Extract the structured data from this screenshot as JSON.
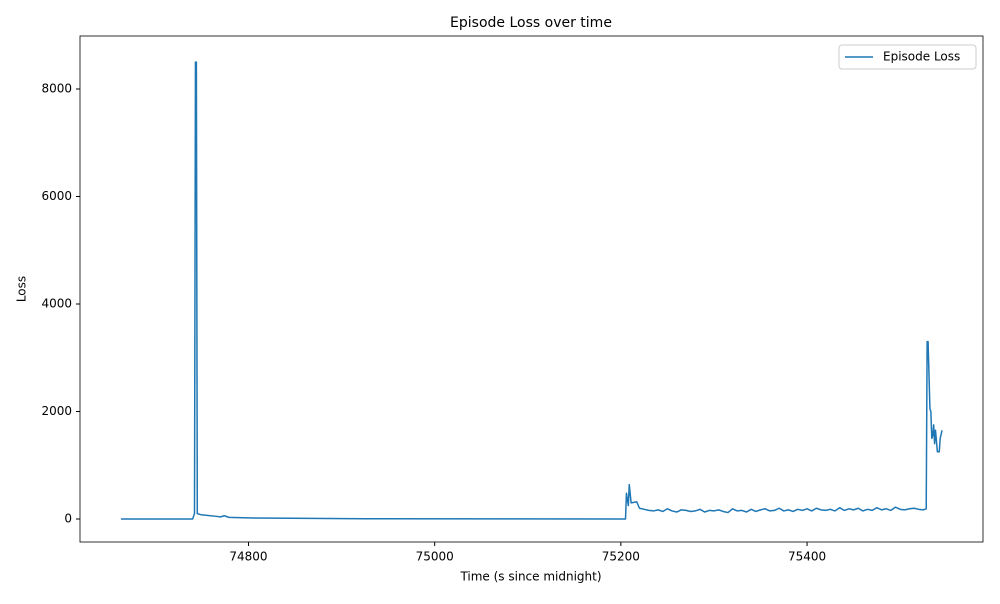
{
  "chart_data": {
    "type": "line",
    "title": "Episode Loss over time",
    "x_label": "Time (s since midnight)",
    "y_label": "Loss",
    "x": [
      74663,
      74740,
      74742,
      74743,
      74744,
      74745,
      74749,
      74765,
      74770,
      74774,
      74779,
      74800,
      74925,
      75205,
      75206,
      75208,
      75209,
      75211,
      75217,
      75220,
      75225,
      75230,
      75235,
      75240,
      75245,
      75250,
      75255,
      75260,
      75265,
      75270,
      75275,
      75280,
      75285,
      75290,
      75295,
      75300,
      75305,
      75310,
      75315,
      75320,
      75325,
      75330,
      75335,
      75340,
      75345,
      75350,
      75355,
      75360,
      75365,
      75370,
      75375,
      75380,
      75385,
      75390,
      75395,
      75400,
      75405,
      75410,
      75415,
      75420,
      75425,
      75430,
      75435,
      75440,
      75445,
      75450,
      75455,
      75460,
      75465,
      75470,
      75475,
      75480,
      75485,
      75490,
      75495,
      75500,
      75505,
      75510,
      75515,
      75520,
      75525,
      75528,
      75529,
      75530,
      75532,
      75533,
      75534,
      75535,
      75536,
      75537,
      75538,
      75540,
      75542,
      75543,
      75545
    ],
    "series": [
      {
        "name": "Episode Loss",
        "color": "#1f77b4",
        "values": [
          0,
          0,
          100,
          8500,
          8500,
          100,
          80,
          50,
          40,
          60,
          30,
          20,
          5,
          0,
          480,
          250,
          640,
          300,
          320,
          200,
          180,
          160,
          150,
          170,
          140,
          190,
          150,
          130,
          170,
          160,
          140,
          150,
          180,
          130,
          160,
          150,
          170,
          140,
          120,
          190,
          150,
          160,
          130,
          180,
          140,
          170,
          190,
          150,
          160,
          200,
          150,
          170,
          140,
          180,
          160,
          190,
          150,
          200,
          170,
          160,
          180,
          150,
          210,
          160,
          190,
          170,
          200,
          150,
          180,
          160,
          210,
          170,
          190,
          160,
          220,
          180,
          170,
          190,
          200,
          180,
          170,
          190,
          3300,
          3300,
          2050,
          2000,
          1500,
          1550,
          1750,
          1400,
          1650,
          1250,
          1250,
          1500,
          1650
        ]
      }
    ],
    "xlim": [
      74619,
      75589
    ],
    "ylim": [
      -428,
      8986
    ],
    "xticks": [
      74800,
      75000,
      75200,
      75400
    ],
    "yticks": [
      0,
      2000,
      4000,
      6000,
      8000
    ],
    "legend": "upper right"
  }
}
